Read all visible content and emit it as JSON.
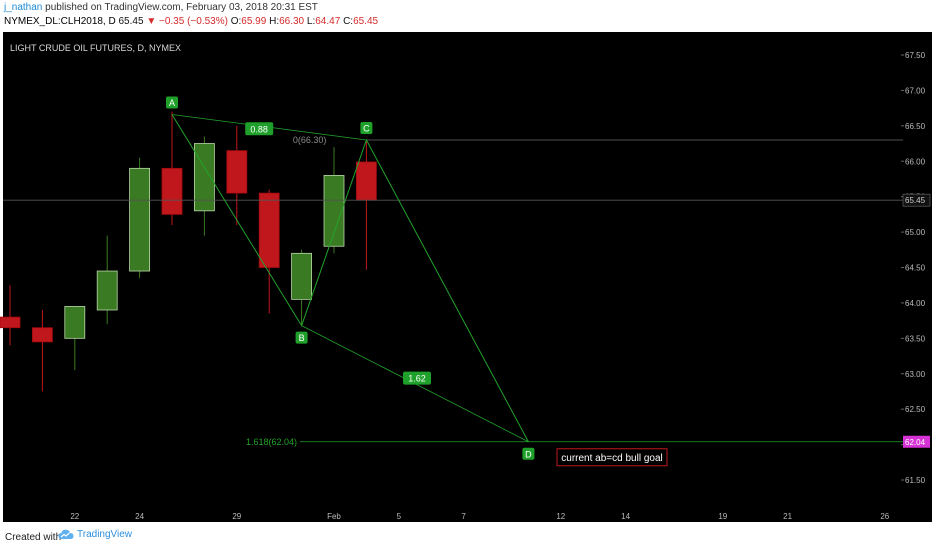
{
  "header": {
    "author": "j_nathan",
    "published_text": "published on TradingView.com, February 03, 2018 20:31 EST",
    "symbol": "NYMEX_DL:CLH2018, D",
    "last": "65.45",
    "change": "−0.35 (−0.53%)",
    "open_label": "O:",
    "open_value": "65.99",
    "high_label": "H:",
    "high_value": "66.30",
    "low_label": "L:",
    "low_value": "64.47",
    "close_label": "C:",
    "close_value": "65.45"
  },
  "chart_title": "LIGHT CRUDE OIL FUTURES, D, NYMEX",
  "footer": {
    "created_with": "Created with",
    "brand": "TradingView"
  },
  "colors": {
    "background": "#000000",
    "bull": "#3a7a22",
    "bear": "#c0171c",
    "pattern": "#22a32a",
    "axis_text": "#bbbbbb",
    "price_tag": "#d633d6"
  },
  "icons": {
    "down_arrow": "triangle-down-icon",
    "brand_logo": "tradingview-cloud-icon"
  },
  "chart_data": {
    "type": "candlestick",
    "title": "LIGHT CRUDE OIL FUTURES, D, NYMEX",
    "ylim": [
      61.1,
      67.7
    ],
    "y_ticks": [
      "67.50",
      "67.00",
      "66.50",
      "66.00",
      "65.50",
      "65.00",
      "64.50",
      "64.00",
      "63.50",
      "63.00",
      "62.50",
      "62.00",
      "61.50"
    ],
    "x_ticks": [
      "22",
      "24",
      "29",
      "Feb",
      "5",
      "7",
      "12",
      "14",
      "19",
      "21",
      "26"
    ],
    "x_tick_index": [
      2,
      4,
      7,
      10,
      12,
      14,
      17,
      19,
      22,
      24,
      27
    ],
    "candles": [
      {
        "i": 0,
        "o": 63.8,
        "h": 64.25,
        "l": 63.4,
        "c": 63.65
      },
      {
        "i": 1,
        "o": 63.65,
        "h": 63.9,
        "l": 62.75,
        "c": 63.45
      },
      {
        "i": 2,
        "o": 63.5,
        "h": 63.95,
        "l": 63.05,
        "c": 63.95
      },
      {
        "i": 3,
        "o": 63.9,
        "h": 64.95,
        "l": 63.7,
        "c": 64.45
      },
      {
        "i": 4,
        "o": 64.45,
        "h": 66.05,
        "l": 64.35,
        "c": 65.9
      },
      {
        "i": 5,
        "o": 65.9,
        "h": 66.7,
        "l": 65.1,
        "c": 65.25
      },
      {
        "i": 6,
        "o": 65.3,
        "h": 66.35,
        "l": 64.95,
        "c": 66.25
      },
      {
        "i": 7,
        "o": 66.15,
        "h": 66.5,
        "l": 65.1,
        "c": 65.55
      },
      {
        "i": 8,
        "o": 65.55,
        "h": 65.6,
        "l": 63.85,
        "c": 64.5
      },
      {
        "i": 9,
        "o": 64.05,
        "h": 64.75,
        "l": 63.7,
        "c": 64.7
      },
      {
        "i": 10,
        "o": 64.8,
        "h": 66.2,
        "l": 64.7,
        "c": 65.8
      },
      {
        "i": 11,
        "o": 65.99,
        "h": 66.3,
        "l": 64.47,
        "c": 65.45
      }
    ],
    "pattern": {
      "points": [
        {
          "label": "A",
          "i": 5,
          "price": 66.66
        },
        {
          "label": "B",
          "i": 9,
          "price": 63.68
        },
        {
          "label": "C",
          "i": 11,
          "price": 66.3
        },
        {
          "label": "D",
          "i": 16,
          "price": 62.04
        }
      ],
      "ratio_labels": [
        "0.88",
        "1.62"
      ],
      "retracement_label": "0(66.30)",
      "extension_label": "1.618(62.04)",
      "goal_label": "current ab=cd bull goal"
    },
    "price_lines": {
      "last_price": "65.45",
      "target_price": "62.04"
    }
  }
}
